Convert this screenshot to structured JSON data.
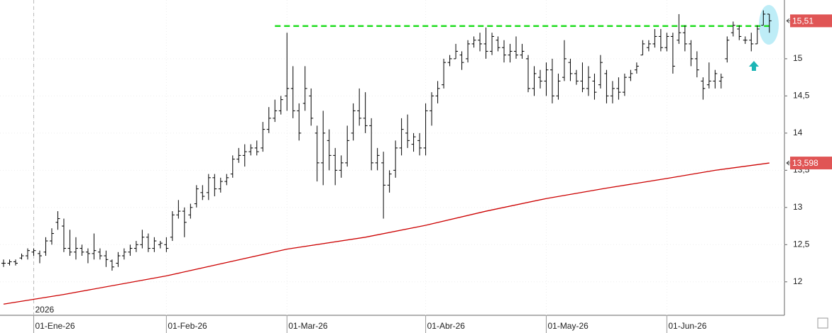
{
  "chart_data": {
    "type": "ohlc",
    "color": "#000000",
    "open": [
      12.25,
      12.25,
      12.27,
      12.32,
      12.35,
      12.4,
      12.38,
      12.4,
      12.55,
      12.8,
      12.75,
      12.45,
      12.4,
      12.45,
      12.4,
      12.38,
      12.4,
      12.35,
      12.28,
      12.25,
      12.35,
      12.4,
      12.45,
      12.5,
      12.6,
      12.45,
      12.5,
      12.5,
      12.6,
      12.9,
      12.95,
      12.9,
      13.05,
      13.2,
      13.2,
      13.4,
      13.25,
      13.35,
      13.45,
      13.65,
      13.7,
      13.75,
      13.8,
      13.8,
      14.05,
      14.2,
      14.3,
      14.5,
      14.6,
      14.3,
      14.4,
      14.5,
      14.0,
      13.6,
      13.9,
      13.7,
      13.5,
      13.6,
      14.0,
      14.3,
      14.2,
      14.1,
      13.6,
      13.6,
      13.3,
      13.5,
      13.8,
      14.0,
      13.85,
      13.9,
      13.8,
      14.3,
      14.5,
      14.65,
      14.95,
      15.0,
      15.05,
      15.0,
      15.2,
      15.25,
      15.2,
      15.1,
      15.25,
      15.15,
      15.05,
      15.1,
      15.05,
      15.0,
      14.6,
      14.75,
      14.7,
      14.85,
      14.5,
      14.75,
      14.95,
      14.8,
      14.7,
      14.6,
      14.7,
      14.65,
      14.8,
      14.5,
      14.6,
      14.55,
      14.75,
      14.85,
      15.05,
      15.15,
      15.2,
      15.3,
      15.15,
      15.3,
      15.25,
      15.35,
      15.2,
      15.0,
      14.7,
      14.65,
      14.7,
      14.7,
      15.0,
      15.35,
      15.4,
      15.25,
      15.25,
      15.2,
      15.45,
      15.6
    ],
    "high": [
      12.3,
      12.3,
      12.3,
      12.38,
      12.45,
      12.45,
      12.42,
      12.6,
      12.72,
      12.95,
      12.85,
      12.7,
      12.6,
      12.5,
      12.45,
      12.65,
      12.45,
      12.42,
      12.3,
      12.4,
      12.45,
      12.5,
      12.55,
      12.7,
      12.65,
      12.6,
      12.55,
      12.6,
      12.95,
      13.1,
      13.0,
      13.05,
      13.3,
      13.3,
      13.45,
      13.45,
      13.4,
      13.45,
      13.7,
      13.8,
      13.85,
      13.85,
      13.9,
      14.15,
      14.35,
      14.45,
      14.5,
      15.35,
      14.9,
      14.4,
      14.9,
      14.6,
      14.1,
      14.3,
      14.05,
      13.8,
      13.7,
      14.1,
      14.4,
      14.6,
      14.55,
      14.2,
      13.8,
      13.75,
      13.5,
      13.9,
      14.2,
      14.25,
      14.0,
      14.0,
      14.4,
      14.55,
      14.7,
      15.0,
      15.05,
      15.2,
      15.1,
      15.25,
      15.3,
      15.35,
      15.42,
      15.35,
      15.3,
      15.25,
      15.2,
      15.3,
      15.2,
      15.05,
      14.9,
      14.85,
      14.95,
      15.0,
      14.8,
      15.25,
      15.0,
      14.85,
      14.95,
      14.9,
      14.8,
      15.05,
      14.85,
      14.7,
      14.75,
      14.8,
      14.85,
      14.95,
      15.25,
      15.25,
      15.4,
      15.4,
      15.35,
      15.35,
      15.6,
      15.45,
      15.25,
      15.1,
      14.75,
      14.95,
      14.85,
      14.8,
      15.3,
      15.5,
      15.45,
      15.3,
      15.35,
      15.45,
      15.65,
      15.6
    ],
    "low": [
      12.2,
      12.22,
      12.22,
      12.3,
      12.3,
      12.35,
      12.25,
      12.35,
      12.5,
      12.7,
      12.4,
      12.35,
      12.3,
      12.35,
      12.25,
      12.3,
      12.3,
      12.2,
      12.15,
      12.2,
      12.3,
      12.35,
      12.4,
      12.45,
      12.4,
      12.4,
      12.45,
      12.4,
      12.55,
      12.85,
      12.6,
      12.85,
      13.0,
      13.1,
      13.1,
      13.15,
      13.2,
      13.3,
      13.4,
      13.6,
      13.55,
      13.7,
      13.7,
      13.75,
      14.0,
      14.15,
      14.25,
      14.3,
      14.2,
      13.9,
      14.3,
      14.1,
      13.35,
      13.3,
      13.5,
      13.3,
      13.4,
      13.55,
      13.9,
      14.1,
      14.0,
      13.5,
      13.5,
      12.85,
      13.2,
      13.4,
      13.7,
      13.8,
      13.75,
      13.7,
      13.7,
      14.1,
      14.4,
      14.6,
      14.9,
      15.0,
      14.85,
      14.95,
      15.15,
      15.1,
      15.0,
      15.05,
      15.1,
      14.95,
      14.95,
      15.0,
      15.0,
      14.55,
      14.5,
      14.6,
      14.5,
      14.4,
      14.45,
      14.7,
      14.7,
      14.65,
      14.55,
      14.5,
      14.45,
      14.6,
      14.4,
      14.4,
      14.45,
      14.5,
      14.7,
      14.8,
      15.05,
      15.1,
      15.15,
      15.1,
      15.1,
      14.8,
      15.2,
      15.1,
      14.9,
      14.75,
      14.45,
      14.6,
      14.6,
      14.6,
      14.95,
      15.3,
      15.25,
      15.2,
      15.1,
      15.2,
      15.45,
      15.35
    ],
    "close": [
      12.25,
      12.27,
      12.25,
      12.35,
      12.42,
      12.42,
      12.35,
      12.55,
      12.65,
      12.85,
      12.45,
      12.4,
      12.45,
      12.4,
      12.38,
      12.42,
      12.35,
      12.3,
      12.2,
      12.35,
      12.4,
      12.45,
      12.5,
      12.6,
      12.45,
      12.55,
      12.52,
      12.45,
      12.9,
      12.95,
      12.8,
      13.0,
      13.25,
      13.15,
      13.4,
      13.25,
      13.35,
      13.4,
      13.65,
      13.7,
      13.75,
      13.8,
      13.75,
      14.05,
      14.2,
      14.3,
      14.45,
      14.6,
      14.3,
      14.0,
      14.6,
      14.2,
      13.6,
      14.0,
      13.7,
      13.5,
      13.6,
      13.9,
      14.3,
      14.2,
      14.1,
      13.6,
      13.7,
      13.3,
      13.45,
      13.8,
      14.05,
      13.9,
      13.95,
      13.8,
      14.3,
      14.5,
      14.6,
      14.95,
      15.0,
      15.1,
      14.95,
      15.2,
      15.25,
      15.2,
      15.1,
      15.3,
      15.15,
      15.05,
      15.1,
      15.05,
      15.1,
      14.6,
      14.8,
      14.7,
      14.85,
      14.5,
      14.7,
      15.0,
      14.8,
      14.7,
      14.6,
      14.75,
      14.55,
      14.95,
      14.5,
      14.6,
      14.55,
      14.75,
      14.8,
      14.9,
      15.2,
      15.2,
      15.3,
      15.15,
      15.3,
      14.9,
      15.35,
      15.2,
      15.0,
      14.85,
      14.6,
      14.7,
      14.8,
      14.75,
      15.25,
      15.45,
      15.3,
      15.25,
      15.2,
      15.4,
      15.6,
      15.51
    ],
    "moving_average": {
      "color": "#cc0000",
      "x": [
        0,
        10,
        27,
        37,
        47,
        60,
        70,
        80,
        90,
        100,
        110,
        118,
        127
      ],
      "values": [
        11.7,
        11.83,
        12.08,
        12.26,
        12.44,
        12.6,
        12.76,
        12.95,
        13.12,
        13.26,
        13.39,
        13.5,
        13.598
      ]
    },
    "resistance": {
      "color": "#22dd22",
      "value": 15.44,
      "x": [
        45,
        127
      ]
    },
    "price_tags": [
      {
        "value": 15.51,
        "label": "15,51"
      },
      {
        "value": 13.598,
        "label": "13,598"
      }
    ],
    "tag_color": "#e05555",
    "year_label": "2026",
    "xlim": [
      -0.59,
      129.5
    ],
    "xticks": [
      {
        "value": 5,
        "label": "01-Ene-26"
      },
      {
        "value": 27,
        "label": "01-Feb-26"
      },
      {
        "value": 47,
        "label": "01-Mar-26"
      },
      {
        "value": 70,
        "label": "01-Abr-26"
      },
      {
        "value": 90,
        "label": "01-May-26"
      },
      {
        "value": 110,
        "label": "01-Jun-26"
      }
    ],
    "ylim": [
      11.55,
      15.79
    ],
    "yticks": [
      12,
      {
        "value": 12.5,
        "label": "12,5"
      },
      13,
      {
        "value": 13.5,
        "label": "13,5"
      },
      14,
      {
        "value": 14.5,
        "label": "14,5"
      },
      15
    ],
    "grid": true
  }
}
